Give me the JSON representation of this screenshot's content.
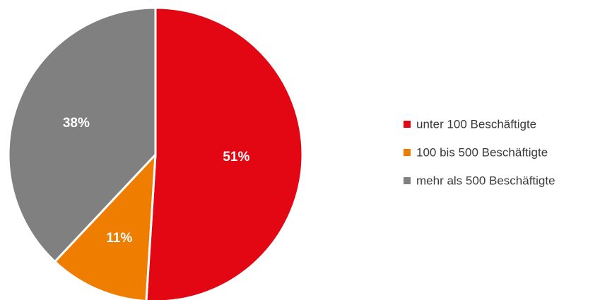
{
  "chart_data": {
    "type": "pie",
    "title": "",
    "categories": [
      "unter 100 Beschäftigte",
      "100 bis 500 Beschäftigte",
      "mehr als 500 Beschäftigte"
    ],
    "values": [
      51,
      11,
      38
    ],
    "value_labels": [
      "51%",
      "11%",
      "38%"
    ],
    "colors": [
      "#e30613",
      "#ef7d00",
      "#808080"
    ],
    "start_angle_deg": 0,
    "direction": "clockwise",
    "legend_position": "right"
  }
}
